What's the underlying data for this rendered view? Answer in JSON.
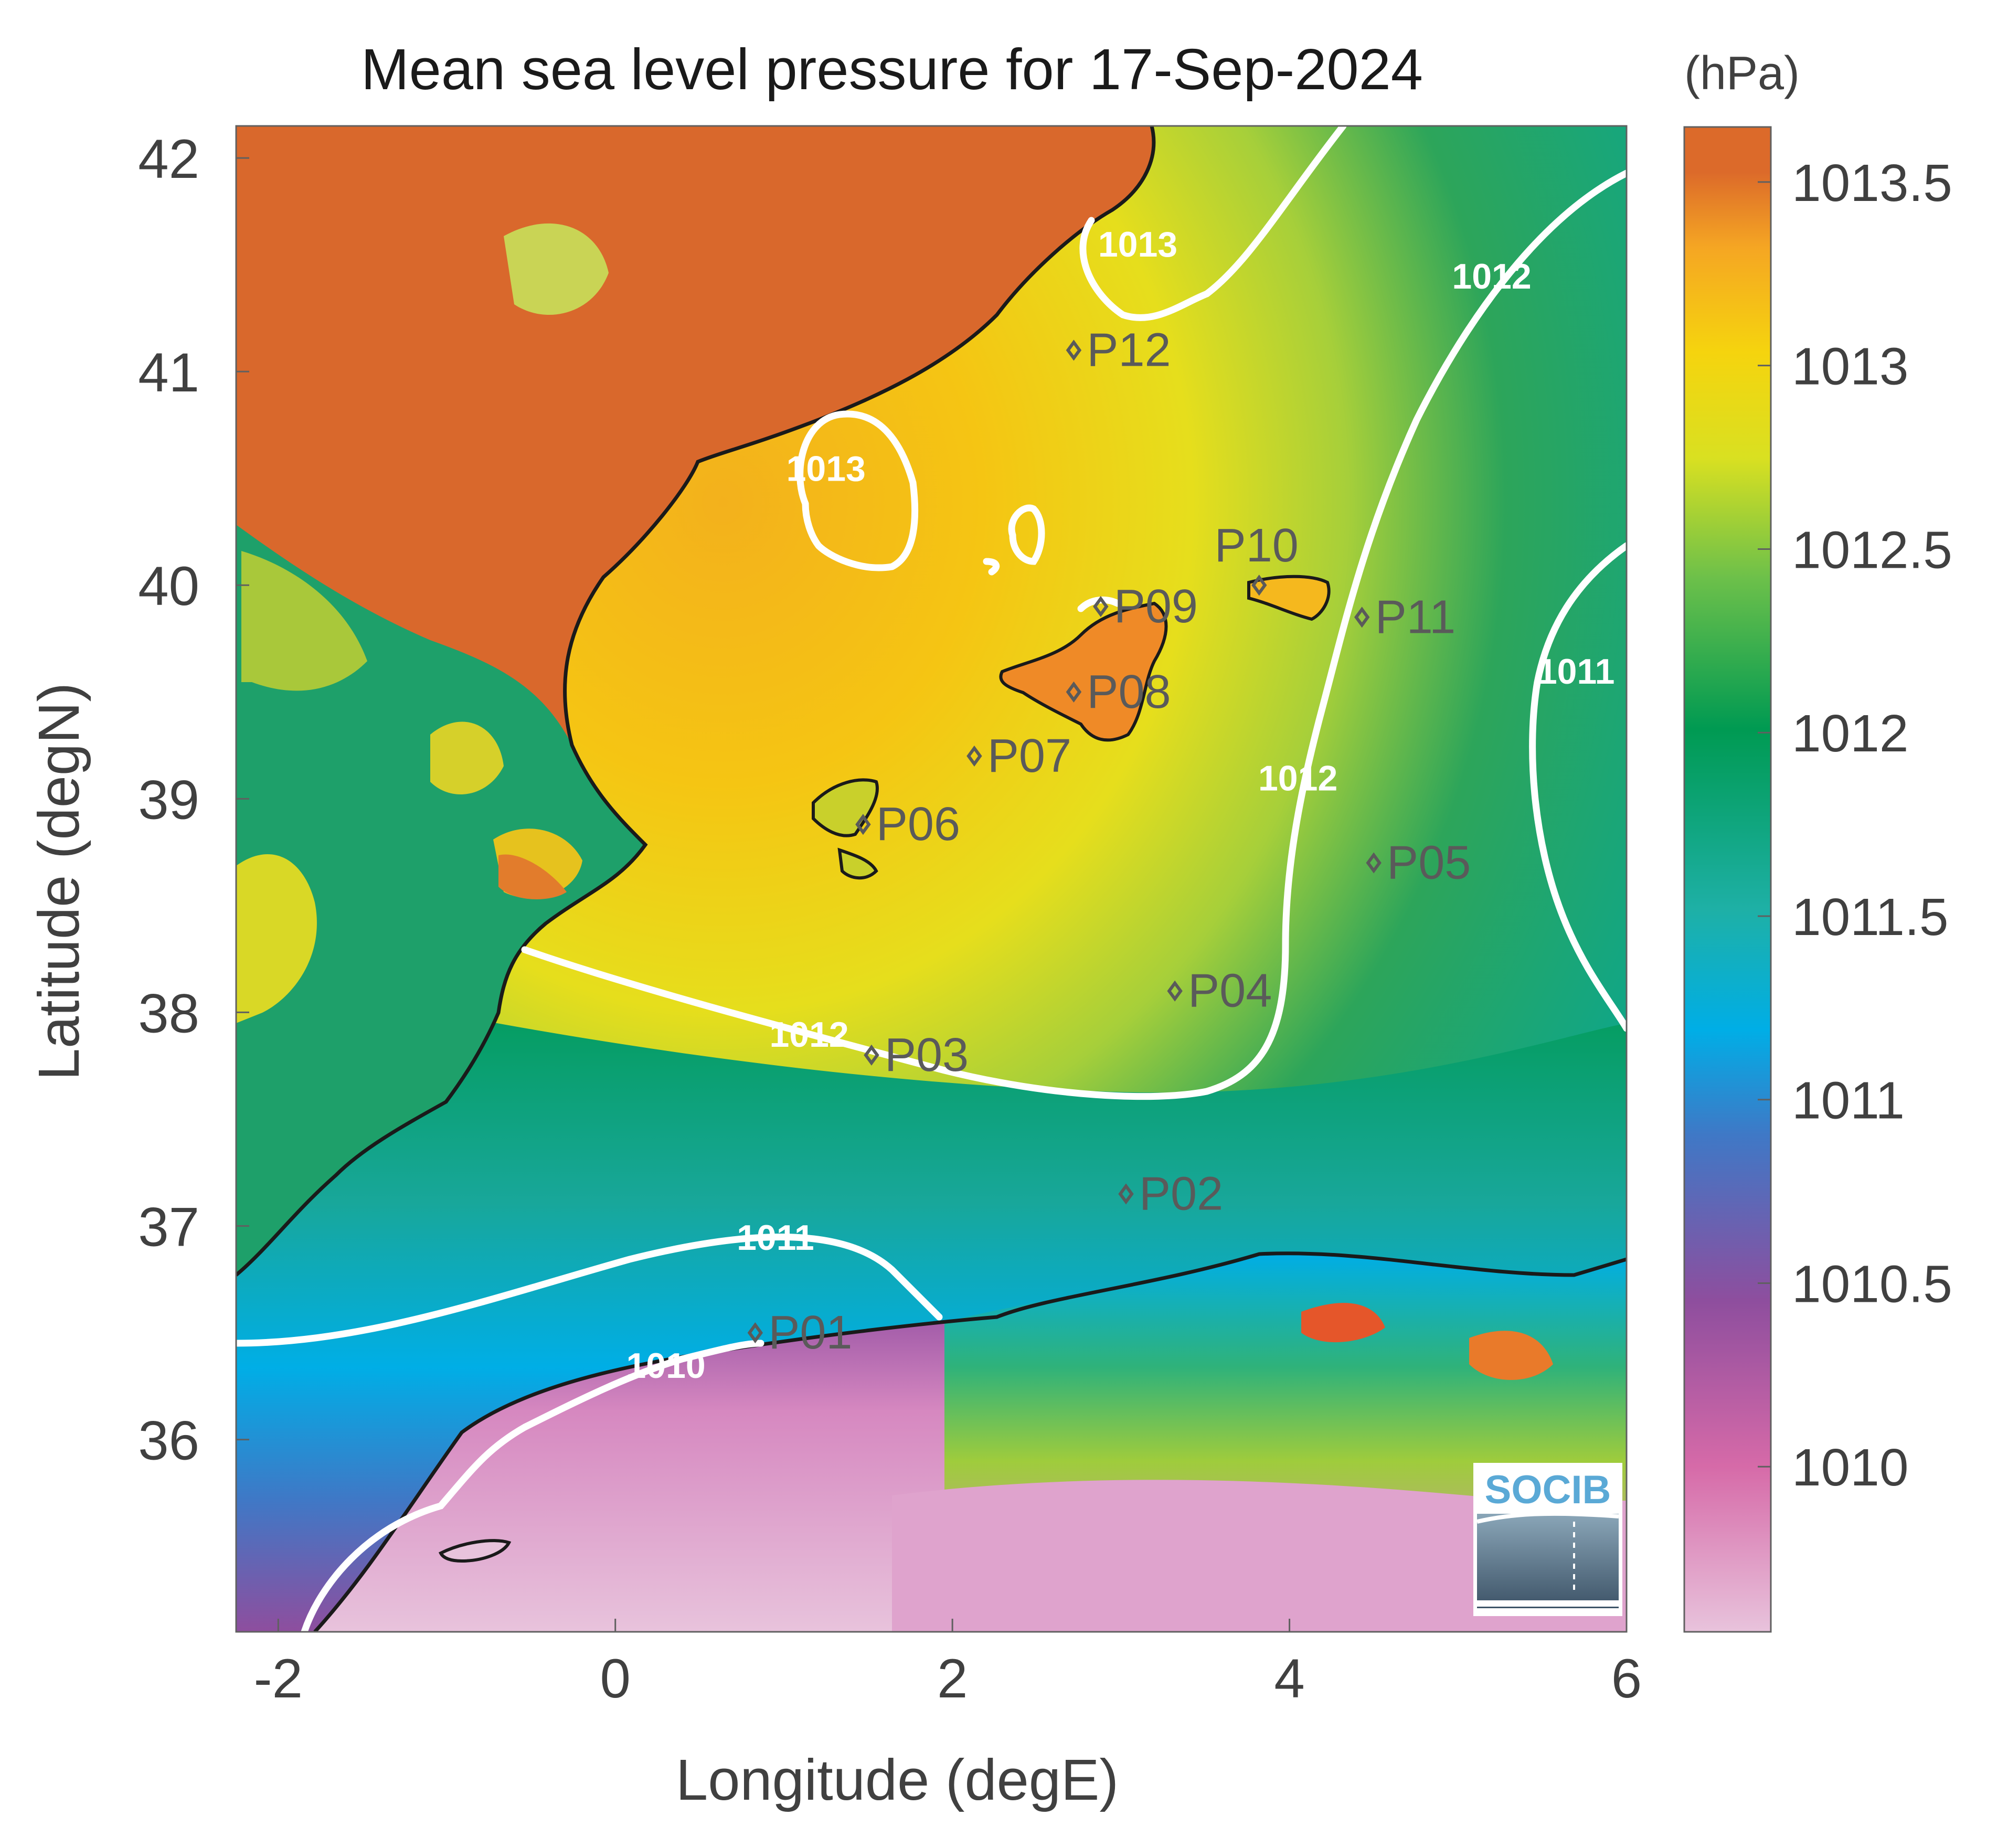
{
  "title": "Mean sea level pressure for 17-Sep-2024",
  "units_label": "(hPa)",
  "x_axis": {
    "label": "Longitude (degE)",
    "range": [
      -2.25,
      6.0
    ],
    "ticks": [
      {
        "value": -2,
        "label": "-2"
      },
      {
        "value": 0,
        "label": "0"
      },
      {
        "value": 2,
        "label": "2"
      },
      {
        "value": 4,
        "label": "4"
      },
      {
        "value": 6,
        "label": "6"
      }
    ]
  },
  "y_axis": {
    "label": "Latitude (degN)",
    "range": [
      35.1,
      42.15
    ],
    "ticks": [
      {
        "value": 36,
        "label": "36"
      },
      {
        "value": 37,
        "label": "37"
      },
      {
        "value": 38,
        "label": "38"
      },
      {
        "value": 39,
        "label": "39"
      },
      {
        "value": 40,
        "label": "40"
      },
      {
        "value": 41,
        "label": "41"
      },
      {
        "value": 42,
        "label": "42"
      }
    ]
  },
  "colorbar": {
    "range": [
      1009.55,
      1013.65
    ],
    "ticks": [
      {
        "value": 1010,
        "label": "1010"
      },
      {
        "value": 1010.5,
        "label": "1010.5"
      },
      {
        "value": 1011,
        "label": "1011"
      },
      {
        "value": 1011.5,
        "label": "1011.5"
      },
      {
        "value": 1012,
        "label": "1012"
      },
      {
        "value": 1012.5,
        "label": "1012.5"
      },
      {
        "value": 1013,
        "label": "1013"
      },
      {
        "value": 1013.5,
        "label": "1013.5"
      }
    ],
    "colors": [
      "#e8c3dc",
      "#d66aa8",
      "#8e4e9e",
      "#3f78c6",
      "#00aee6",
      "#1eb0a6",
      "#009a52",
      "#6cc04a",
      "#d9e021",
      "#f5d40e",
      "#f5a623",
      "#dc6a2a"
    ]
  },
  "contour_labels": [
    {
      "label": "1013",
      "lon": 3.1,
      "lat": 41.6
    },
    {
      "label": "1013",
      "lon": 1.25,
      "lat": 40.55
    },
    {
      "label": "1012",
      "lon": 5.2,
      "lat": 41.45
    },
    {
      "label": "1012",
      "lon": 4.05,
      "lat": 39.1
    },
    {
      "label": "1012",
      "lon": 1.15,
      "lat": 37.9
    },
    {
      "label": "1011",
      "lon": 5.7,
      "lat": 39.6
    },
    {
      "label": "1011",
      "lon": 0.95,
      "lat": 36.95
    },
    {
      "label": "1010",
      "lon": 0.3,
      "lat": 36.35
    }
  ],
  "stations": [
    {
      "id": "P01",
      "lon": 0.83,
      "lat": 36.5
    },
    {
      "id": "P02",
      "lon": 3.03,
      "lat": 37.15
    },
    {
      "id": "P03",
      "lon": 1.52,
      "lat": 37.8
    },
    {
      "id": "P04",
      "lon": 3.32,
      "lat": 38.1
    },
    {
      "id": "P05",
      "lon": 4.5,
      "lat": 38.7
    },
    {
      "id": "P06",
      "lon": 1.47,
      "lat": 38.88
    },
    {
      "id": "P07",
      "lon": 2.13,
      "lat": 39.2
    },
    {
      "id": "P08",
      "lon": 2.72,
      "lat": 39.5
    },
    {
      "id": "P09",
      "lon": 2.88,
      "lat": 39.9
    },
    {
      "id": "P10",
      "lon": 3.82,
      "lat": 40.0
    },
    {
      "id": "P11",
      "lon": 4.43,
      "lat": 39.85
    },
    {
      "id": "P12",
      "lon": 2.72,
      "lat": 41.1
    }
  ],
  "logo": {
    "text": "SOCIB"
  }
}
